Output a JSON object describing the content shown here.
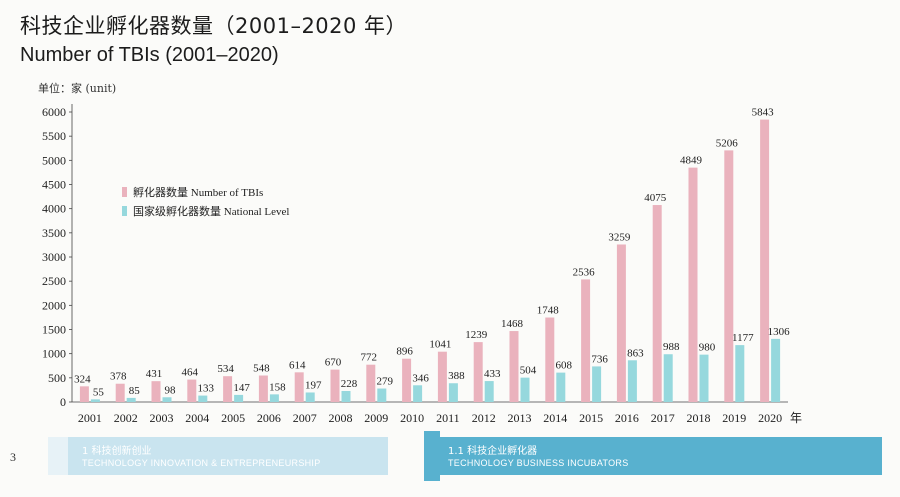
{
  "header": {
    "title_cn": "科技企业孵化器数量（2001–2020 年）",
    "title_en": "Number of TBIs (2001–2020)",
    "unit": "单位：家 (unit)"
  },
  "chart_data": {
    "type": "bar",
    "categories": [
      "2001",
      "2002",
      "2003",
      "2004",
      "2005",
      "2006",
      "2007",
      "2008",
      "2009",
      "2010",
      "2011",
      "2012",
      "2013",
      "2014",
      "2015",
      "2016",
      "2017",
      "2018",
      "2019",
      "2020"
    ],
    "x_suffix": "年",
    "series": [
      {
        "name": "孵化器数量 Number of TBIs",
        "color": "#eab2bd",
        "values": [
          324,
          378,
          431,
          464,
          534,
          548,
          614,
          670,
          772,
          896,
          1041,
          1239,
          1468,
          1748,
          2536,
          3259,
          4075,
          4849,
          5206,
          5843
        ]
      },
      {
        "name": "国家级孵化器数量 National Level",
        "color": "#96d8dd",
        "values": [
          55,
          85,
          98,
          133,
          147,
          158,
          197,
          228,
          279,
          346,
          388,
          433,
          504,
          608,
          736,
          863,
          988,
          980,
          1177,
          1306
        ]
      }
    ],
    "yticks": [
      0,
      500,
      1000,
      1500,
      2000,
      2500,
      3000,
      3500,
      4000,
      4500,
      5000,
      5500,
      6000
    ],
    "ylim": [
      0,
      6000
    ],
    "legend_position": "upper-left"
  },
  "footer": {
    "page_number": "3",
    "left_section_title": "1  科技创新创业",
    "left_section_subtitle": "TECHNOLOGY INNOVATION & ENTREPRENEURSHIP",
    "right_section_title": "1.1  科技企业孵化器",
    "right_section_subtitle": "TECHNOLOGY BUSINESS INCUBATORS",
    "band_color": "#58b1cf"
  }
}
